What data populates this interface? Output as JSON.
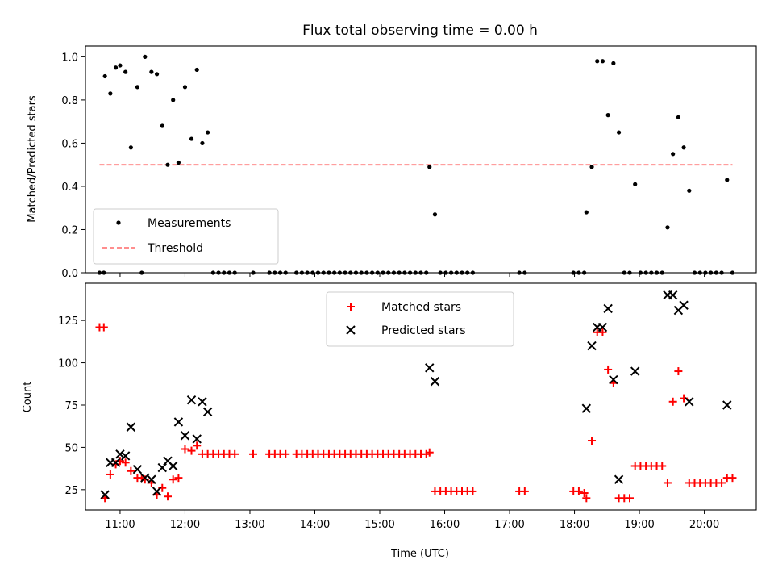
{
  "colors": {
    "measurements": "#000000",
    "threshold": "#ff7f7f",
    "matched": "#ff0000",
    "predicted": "#000000"
  },
  "chart_data": [
    {
      "type": "scatter",
      "title": "Flux total observing time = 0.00 h",
      "xlabel": "",
      "ylabel": "Matched/Predicted stars",
      "xlim": [
        "10:28",
        "20:48"
      ],
      "ylim": [
        0,
        1.05
      ],
      "yticks": [
        "0.0",
        "0.2",
        "0.4",
        "0.6",
        "0.8",
        "1.0"
      ],
      "grid": false,
      "legend": {
        "placement": "lower-left",
        "entries": [
          {
            "name": "Measurements",
            "marker": "dot"
          },
          {
            "name": "Threshold",
            "marker": "dashed-line"
          }
        ]
      },
      "series": [
        {
          "name": "Measurements",
          "points": [
            [
              "10:41",
              0
            ],
            [
              "10:45",
              0
            ],
            [
              "10:46",
              0.91
            ],
            [
              "10:51",
              0.83
            ],
            [
              "10:56",
              0.95
            ],
            [
              "11:00",
              0.96
            ],
            [
              "11:05",
              0.93
            ],
            [
              "11:10",
              0.58
            ],
            [
              "11:16",
              0.86
            ],
            [
              "11:20",
              0
            ],
            [
              "11:23",
              1.0
            ],
            [
              "11:29",
              0.93
            ],
            [
              "11:34",
              0.92
            ],
            [
              "11:39",
              0.68
            ],
            [
              "11:44",
              0.5
            ],
            [
              "11:49",
              0.8
            ],
            [
              "11:54",
              0.51
            ],
            [
              "12:00",
              0.86
            ],
            [
              "12:06",
              0.62
            ],
            [
              "12:11",
              0.94
            ],
            [
              "12:16",
              0.6
            ],
            [
              "12:21",
              0.65
            ],
            [
              "12:26",
              0
            ],
            [
              "12:31",
              0
            ],
            [
              "12:36",
              0
            ],
            [
              "12:41",
              0
            ],
            [
              "12:46",
              0
            ],
            [
              "13:03",
              0
            ],
            [
              "13:18",
              0
            ],
            [
              "13:23",
              0
            ],
            [
              "13:28",
              0
            ],
            [
              "13:33",
              0
            ],
            [
              "13:43",
              0
            ],
            [
              "13:48",
              0
            ],
            [
              "13:53",
              0
            ],
            [
              "13:58",
              0
            ],
            [
              "14:03",
              0
            ],
            [
              "14:08",
              0
            ],
            [
              "14:13",
              0
            ],
            [
              "14:18",
              0
            ],
            [
              "14:23",
              0
            ],
            [
              "14:28",
              0
            ],
            [
              "14:33",
              0
            ],
            [
              "14:38",
              0
            ],
            [
              "14:43",
              0
            ],
            [
              "14:48",
              0
            ],
            [
              "14:53",
              0
            ],
            [
              "14:58",
              0
            ],
            [
              "15:03",
              0
            ],
            [
              "15:08",
              0
            ],
            [
              "15:13",
              0
            ],
            [
              "15:18",
              0
            ],
            [
              "15:23",
              0
            ],
            [
              "15:28",
              0
            ],
            [
              "15:33",
              0
            ],
            [
              "15:38",
              0
            ],
            [
              "15:43",
              0
            ],
            [
              "15:46",
              0.49
            ],
            [
              "15:51",
              0.27
            ],
            [
              "15:56",
              0
            ],
            [
              "16:01",
              0
            ],
            [
              "16:06",
              0
            ],
            [
              "16:11",
              0
            ],
            [
              "16:16",
              0
            ],
            [
              "16:21",
              0
            ],
            [
              "16:26",
              0
            ],
            [
              "17:09",
              0
            ],
            [
              "17:14",
              0
            ],
            [
              "17:59",
              0
            ],
            [
              "18:04",
              0
            ],
            [
              "18:09",
              0
            ],
            [
              "18:11",
              0.28
            ],
            [
              "18:16",
              0.49
            ],
            [
              "18:21",
              0.98
            ],
            [
              "18:26",
              0.98
            ],
            [
              "18:31",
              0.73
            ],
            [
              "18:36",
              0.97
            ],
            [
              "18:41",
              0.65
            ],
            [
              "18:46",
              0
            ],
            [
              "18:51",
              0
            ],
            [
              "18:56",
              0.41
            ],
            [
              "19:01",
              0
            ],
            [
              "19:06",
              0
            ],
            [
              "19:11",
              0
            ],
            [
              "19:16",
              0
            ],
            [
              "19:21",
              0
            ],
            [
              "19:26",
              0.21
            ],
            [
              "19:31",
              0.55
            ],
            [
              "19:36",
              0.72
            ],
            [
              "19:41",
              0.58
            ],
            [
              "19:46",
              0.38
            ],
            [
              "19:51",
              0
            ],
            [
              "19:56",
              0
            ],
            [
              "20:01",
              0
            ],
            [
              "20:06",
              0
            ],
            [
              "20:11",
              0
            ],
            [
              "20:16",
              0
            ],
            [
              "20:21",
              0.43
            ],
            [
              "20:26",
              0
            ]
          ]
        },
        {
          "name": "Threshold",
          "points": [
            [
              "10:41",
              0.5
            ],
            [
              "20:26",
              0.5
            ]
          ]
        }
      ]
    },
    {
      "type": "scatter",
      "title": "",
      "xlabel": "Time (UTC)",
      "ylabel": "Count",
      "xlim": [
        "10:28",
        "20:48"
      ],
      "ylim": [
        13,
        147
      ],
      "yticks": [
        "25",
        "50",
        "75",
        "100",
        "125"
      ],
      "xticks": [
        "11:00",
        "12:00",
        "13:00",
        "14:00",
        "15:00",
        "16:00",
        "17:00",
        "18:00",
        "19:00",
        "20:00"
      ],
      "grid": false,
      "legend": {
        "placement": "upper-center",
        "entries": [
          {
            "name": "Matched stars",
            "marker": "plus"
          },
          {
            "name": "Predicted stars",
            "marker": "x"
          }
        ]
      },
      "series": [
        {
          "name": "Matched stars",
          "points": [
            [
              "10:41",
              121
            ],
            [
              "10:45",
              121
            ],
            [
              "10:46",
              20
            ],
            [
              "10:51",
              34
            ],
            [
              "10:56",
              40
            ],
            [
              "11:00",
              42
            ],
            [
              "11:05",
              41
            ],
            [
              "11:10",
              36
            ],
            [
              "11:16",
              32
            ],
            [
              "11:20",
              32
            ],
            [
              "11:23",
              31
            ],
            [
              "11:29",
              29
            ],
            [
              "11:34",
              22
            ],
            [
              "11:39",
              26
            ],
            [
              "11:44",
              21
            ],
            [
              "11:49",
              31
            ],
            [
              "11:54",
              32
            ],
            [
              "12:00",
              49
            ],
            [
              "12:06",
              48
            ],
            [
              "12:11",
              51
            ],
            [
              "12:16",
              46
            ],
            [
              "12:21",
              46
            ],
            [
              "12:26",
              46
            ],
            [
              "12:31",
              46
            ],
            [
              "12:36",
              46
            ],
            [
              "12:41",
              46
            ],
            [
              "12:46",
              46
            ],
            [
              "13:03",
              46
            ],
            [
              "13:18",
              46
            ],
            [
              "13:23",
              46
            ],
            [
              "13:28",
              46
            ],
            [
              "13:33",
              46
            ],
            [
              "13:43",
              46
            ],
            [
              "13:48",
              46
            ],
            [
              "13:53",
              46
            ],
            [
              "13:58",
              46
            ],
            [
              "14:03",
              46
            ],
            [
              "14:08",
              46
            ],
            [
              "14:13",
              46
            ],
            [
              "14:18",
              46
            ],
            [
              "14:23",
              46
            ],
            [
              "14:28",
              46
            ],
            [
              "14:33",
              46
            ],
            [
              "14:38",
              46
            ],
            [
              "14:43",
              46
            ],
            [
              "14:48",
              46
            ],
            [
              "14:53",
              46
            ],
            [
              "14:58",
              46
            ],
            [
              "15:03",
              46
            ],
            [
              "15:08",
              46
            ],
            [
              "15:13",
              46
            ],
            [
              "15:18",
              46
            ],
            [
              "15:23",
              46
            ],
            [
              "15:28",
              46
            ],
            [
              "15:33",
              46
            ],
            [
              "15:38",
              46
            ],
            [
              "15:43",
              46
            ],
            [
              "15:46",
              47
            ],
            [
              "15:51",
              24
            ],
            [
              "15:56",
              24
            ],
            [
              "16:01",
              24
            ],
            [
              "16:06",
              24
            ],
            [
              "16:11",
              24
            ],
            [
              "16:16",
              24
            ],
            [
              "16:21",
              24
            ],
            [
              "16:26",
              24
            ],
            [
              "17:09",
              24
            ],
            [
              "17:14",
              24
            ],
            [
              "17:59",
              24
            ],
            [
              "18:04",
              24
            ],
            [
              "18:09",
              23
            ],
            [
              "18:11",
              20
            ],
            [
              "18:16",
              54
            ],
            [
              "18:21",
              118
            ],
            [
              "18:26",
              118
            ],
            [
              "18:31",
              96
            ],
            [
              "18:36",
              88
            ],
            [
              "18:41",
              20
            ],
            [
              "18:46",
              20
            ],
            [
              "18:51",
              20
            ],
            [
              "18:56",
              39
            ],
            [
              "19:01",
              39
            ],
            [
              "19:06",
              39
            ],
            [
              "19:11",
              39
            ],
            [
              "19:16",
              39
            ],
            [
              "19:21",
              39
            ],
            [
              "19:26",
              29
            ],
            [
              "19:31",
              77
            ],
            [
              "19:36",
              95
            ],
            [
              "19:41",
              79
            ],
            [
              "19:46",
              29
            ],
            [
              "19:51",
              29
            ],
            [
              "19:56",
              29
            ],
            [
              "20:01",
              29
            ],
            [
              "20:06",
              29
            ],
            [
              "20:11",
              29
            ],
            [
              "20:16",
              29
            ],
            [
              "20:21",
              32
            ],
            [
              "20:26",
              32
            ]
          ]
        },
        {
          "name": "Predicted stars",
          "points": [
            [
              "10:46",
              22
            ],
            [
              "10:51",
              41
            ],
            [
              "10:56",
              41
            ],
            [
              "11:00",
              46
            ],
            [
              "11:05",
              45
            ],
            [
              "11:10",
              62
            ],
            [
              "11:16",
              37
            ],
            [
              "11:23",
              32
            ],
            [
              "11:29",
              31
            ],
            [
              "11:34",
              24
            ],
            [
              "11:39",
              38
            ],
            [
              "11:44",
              42
            ],
            [
              "11:49",
              39
            ],
            [
              "11:54",
              65
            ],
            [
              "12:00",
              57
            ],
            [
              "12:06",
              78
            ],
            [
              "12:11",
              55
            ],
            [
              "12:16",
              77
            ],
            [
              "12:21",
              71
            ],
            [
              "15:46",
              97
            ],
            [
              "15:51",
              89
            ],
            [
              "18:11",
              73
            ],
            [
              "18:16",
              110
            ],
            [
              "18:21",
              121
            ],
            [
              "18:26",
              121
            ],
            [
              "18:31",
              132
            ],
            [
              "18:36",
              90
            ],
            [
              "18:41",
              31
            ],
            [
              "18:56",
              95
            ],
            [
              "19:26",
              140
            ],
            [
              "19:31",
              140
            ],
            [
              "19:36",
              131
            ],
            [
              "19:41",
              134
            ],
            [
              "19:46",
              77
            ],
            [
              "20:21",
              75
            ]
          ]
        }
      ]
    }
  ]
}
